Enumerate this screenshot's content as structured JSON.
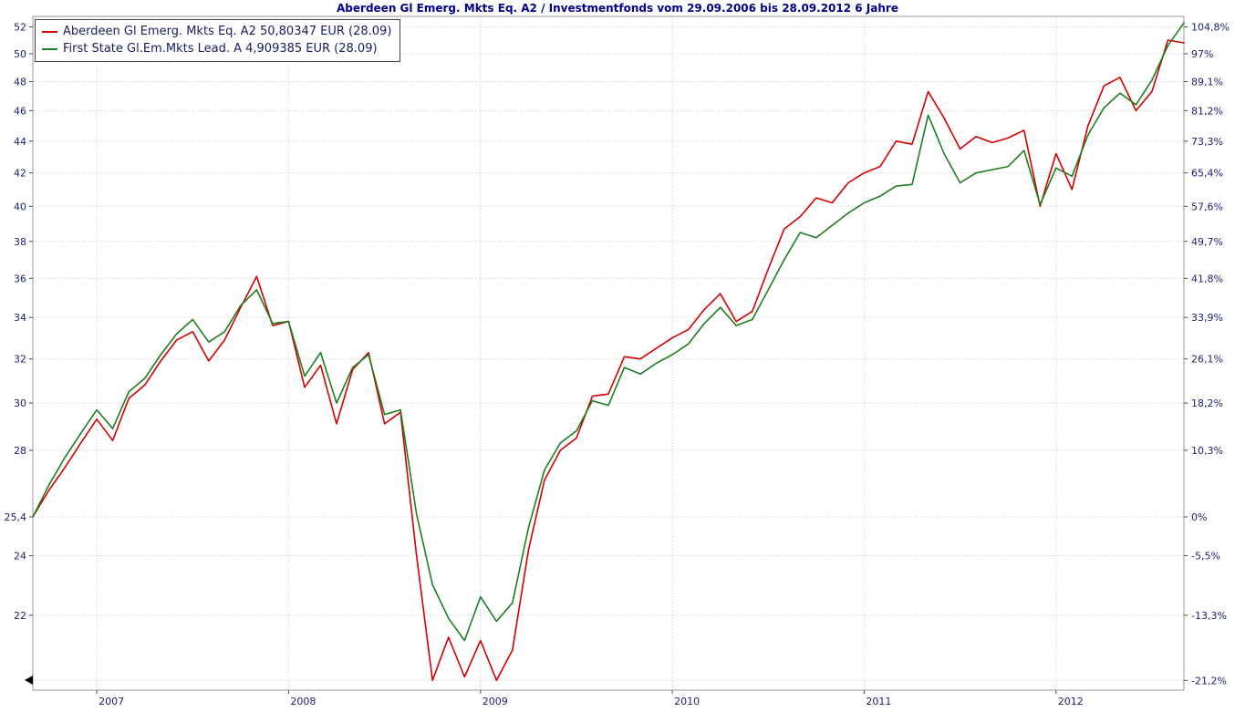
{
  "title": "Aberdeen Gl Emerg. Mkts Eq. A2 / Investmentfonds vom 29.09.2006 bis 28.09.2012 6 Jahre",
  "legend": {
    "items": [
      {
        "label": "Aberdeen Gl Emerg. Mkts Eq. A2 50,80347 EUR (28.09)",
        "color": "#d40000"
      },
      {
        "label": "First State Gl.Em.Mkts Lead. A 4,909385 EUR (28.09)",
        "color": "#1e7d1e"
      }
    ]
  },
  "colors": {
    "series_aberdeen": "#d40000",
    "series_first_state": "#1e7d1e",
    "title_text": "#00008b",
    "axis_text": "#1c1c6e",
    "legend_text": "#1b1b5e",
    "grid": "#c9c9c9",
    "frame": "#9a9a9a",
    "axis_line": "#444444",
    "background": "#ffffff"
  },
  "chart_data": {
    "type": "line",
    "title": "Aberdeen Gl Emerg. Mkts Eq. A2 / Investmentfonds vom 29.09.2006 bis 28.09.2012 6 Jahre",
    "period_start": "29.09.2006",
    "period_end": "28.09.2012",
    "period_length": "6 Jahre",
    "grid": "dotted",
    "legend_position": "top-left",
    "y_scale": "log",
    "baseline_value": 25.4,
    "ylim": [
      19.8,
      52.8
    ],
    "x_unit": "month",
    "x": [
      "2006-09",
      "2006-10",
      "2006-11",
      "2006-12",
      "2007-01",
      "2007-02",
      "2007-03",
      "2007-04",
      "2007-05",
      "2007-06",
      "2007-07",
      "2007-08",
      "2007-09",
      "2007-10",
      "2007-11",
      "2007-12",
      "2008-01",
      "2008-02",
      "2008-03",
      "2008-04",
      "2008-05",
      "2008-06",
      "2008-07",
      "2008-08",
      "2008-09",
      "2008-10",
      "2008-11",
      "2008-12",
      "2009-01",
      "2009-02",
      "2009-03",
      "2009-04",
      "2009-05",
      "2009-06",
      "2009-07",
      "2009-08",
      "2009-09",
      "2009-10",
      "2009-11",
      "2009-12",
      "2010-01",
      "2010-02",
      "2010-03",
      "2010-04",
      "2010-05",
      "2010-06",
      "2010-07",
      "2010-08",
      "2010-09",
      "2010-10",
      "2010-11",
      "2010-12",
      "2011-01",
      "2011-02",
      "2011-03",
      "2011-04",
      "2011-05",
      "2011-06",
      "2011-07",
      "2011-08",
      "2011-09",
      "2011-10",
      "2011-11",
      "2011-12",
      "2012-01",
      "2012-02",
      "2012-03",
      "2012-04",
      "2012-05",
      "2012-06",
      "2012-07",
      "2012-08",
      "2012-09"
    ],
    "series": [
      {
        "name": "Aberdeen Gl Emerg. Mkts Eq. A2",
        "last_value": "50,80347 EUR (28.09)",
        "color": "#d40000",
        "values": [
          25.4,
          26.4,
          27.3,
          28.3,
          29.3,
          28.4,
          30.2,
          30.8,
          31.9,
          32.9,
          33.3,
          31.9,
          32.9,
          34.5,
          36.1,
          33.6,
          33.8,
          30.7,
          31.7,
          29.1,
          31.5,
          32.3,
          29.1,
          29.6,
          24.0,
          20.0,
          21.3,
          20.1,
          21.2,
          20.0,
          20.9,
          24.2,
          26.8,
          28.0,
          28.5,
          30.3,
          30.4,
          32.1,
          32.0,
          32.5,
          33.0,
          33.4,
          34.4,
          35.2,
          33.8,
          34.3,
          36.5,
          38.7,
          39.4,
          40.5,
          40.2,
          41.4,
          42.0,
          42.4,
          44.0,
          43.8,
          47.3,
          45.5,
          43.5,
          44.3,
          43.9,
          44.2,
          44.7,
          40.0,
          43.2,
          41.0,
          45.0,
          47.7,
          48.3,
          46.0,
          47.3,
          51.0,
          50.8
        ]
      },
      {
        "name": "First State Gl.Em.Mkts Lead. A",
        "last_value": "4,909385 EUR (28.09)",
        "color": "#1e7d1e",
        "values": [
          25.4,
          26.6,
          27.7,
          28.7,
          29.7,
          28.9,
          30.5,
          31.1,
          32.2,
          33.2,
          33.9,
          32.8,
          33.3,
          34.6,
          35.4,
          33.7,
          33.8,
          31.2,
          32.3,
          30.0,
          31.6,
          32.2,
          29.5,
          29.7,
          25.5,
          23.0,
          21.9,
          21.2,
          22.6,
          21.8,
          22.4,
          25.0,
          27.2,
          28.3,
          28.8,
          30.1,
          29.9,
          31.6,
          31.3,
          31.8,
          32.2,
          32.7,
          33.7,
          34.5,
          33.6,
          33.9,
          35.4,
          37.0,
          38.5,
          38.2,
          38.9,
          39.6,
          40.2,
          40.6,
          41.2,
          41.3,
          45.7,
          43.2,
          41.4,
          42.0,
          42.2,
          42.4,
          43.4,
          40.1,
          42.3,
          41.8,
          44.4,
          46.2,
          47.2,
          46.4,
          48.1,
          50.6,
          52.3
        ]
      }
    ],
    "y_ticks": [
      {
        "price": 52,
        "left": "52",
        "right": "104,8%"
      },
      {
        "price": 50,
        "left": "50",
        "right": "97%"
      },
      {
        "price": 48,
        "left": "48",
        "right": "89,1%"
      },
      {
        "price": 46,
        "left": "46",
        "right": "81,2%"
      },
      {
        "price": 44,
        "left": "44",
        "right": "73,3%"
      },
      {
        "price": 42,
        "left": "42",
        "right": "65,4%"
      },
      {
        "price": 40,
        "left": "40",
        "right": "57,6%"
      },
      {
        "price": 38,
        "left": "38",
        "right": "49,7%"
      },
      {
        "price": 36,
        "left": "36",
        "right": "41,8%"
      },
      {
        "price": 34,
        "left": "34",
        "right": "33,9%"
      },
      {
        "price": 32,
        "left": "32",
        "right": "26,1%"
      },
      {
        "price": 30,
        "left": "30",
        "right": "18,2%"
      },
      {
        "price": 28,
        "left": "28",
        "right": "10,3%"
      },
      {
        "price": 25.4,
        "left": "25,4",
        "right": "0%"
      },
      {
        "price": 24,
        "left": "24",
        "right": "-5,5%"
      },
      {
        "price": 22,
        "left": "22",
        "right": "-13,3%"
      },
      {
        "price": 20,
        "left": "",
        "right": "-21,2%"
      }
    ],
    "x_ticks": [
      {
        "index": 4,
        "label": "2007"
      },
      {
        "index": 16,
        "label": "2008"
      },
      {
        "index": 28,
        "label": "2009"
      },
      {
        "index": 40,
        "label": "2010"
      },
      {
        "index": 52,
        "label": "2011"
      },
      {
        "index": 64,
        "label": "2012"
      }
    ]
  }
}
